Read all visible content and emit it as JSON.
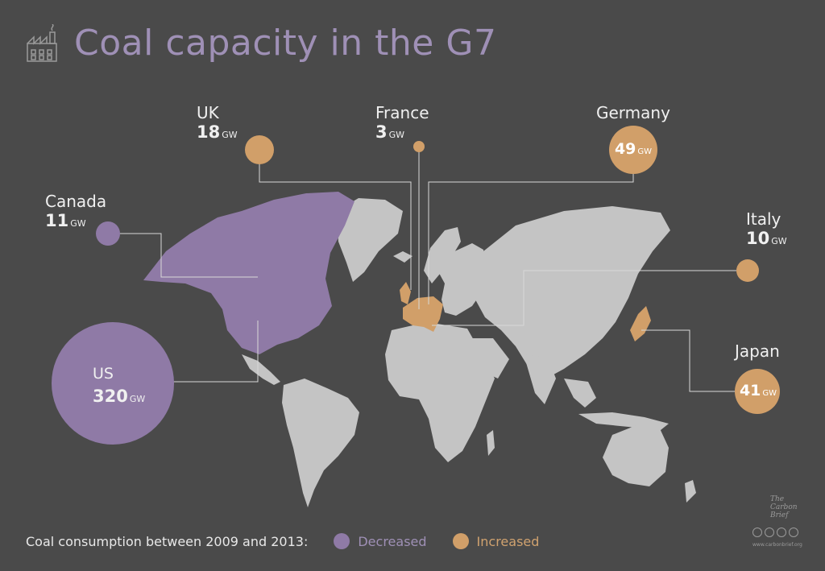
{
  "title": "Coal capacity in the G7",
  "unit": "GW",
  "colors": {
    "decreased": "#8f7aa6",
    "increased": "#d19f69",
    "land": "#c4c4c4",
    "background": "#4a4a4a"
  },
  "countries": {
    "uk": {
      "name": "UK",
      "value": "18",
      "trend": "increased"
    },
    "france": {
      "name": "France",
      "value": "3",
      "trend": "increased"
    },
    "germany": {
      "name": "Germany",
      "value": "49",
      "trend": "increased"
    },
    "canada": {
      "name": "Canada",
      "value": "11",
      "trend": "decreased"
    },
    "italy": {
      "name": "Italy",
      "value": "10",
      "trend": "increased"
    },
    "japan": {
      "name": "Japan",
      "value": "41",
      "trend": "increased"
    },
    "us": {
      "name": "US",
      "value": "320",
      "trend": "decreased"
    }
  },
  "legend": {
    "label": "Coal consumption between 2009 and 2013:",
    "decreased": "Decreased",
    "increased": "Increased"
  },
  "brand": {
    "line1": "The",
    "line2": "Carbon",
    "line3": "Brief",
    "url": "www.carbonbrief.org"
  }
}
